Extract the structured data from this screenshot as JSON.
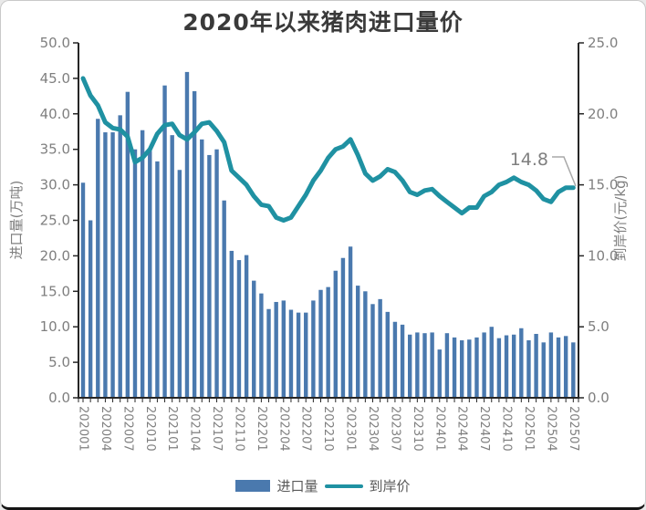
{
  "title": "2020年以来猪肉进口量价",
  "annotation_text": "14.8",
  "chart_data": {
    "type": "bar+line combo",
    "title": "2020年以来猪肉进口量价",
    "categories": [
      "202001",
      "202002",
      "202003",
      "202004",
      "202005",
      "202006",
      "202007",
      "202008",
      "202009",
      "202010",
      "202011",
      "202012",
      "202101",
      "202102",
      "202103",
      "202104",
      "202105",
      "202106",
      "202107",
      "202108",
      "202109",
      "202110",
      "202111",
      "202112",
      "202201",
      "202202",
      "202203",
      "202204",
      "202205",
      "202206",
      "202207",
      "202208",
      "202209",
      "202210",
      "202211",
      "202212",
      "202301",
      "202302",
      "202303",
      "202304",
      "202305",
      "202306",
      "202307",
      "202308",
      "202309",
      "202310",
      "202311",
      "202312",
      "202401",
      "202402",
      "202403",
      "202404",
      "202405",
      "202406",
      "202407",
      "202408",
      "202409",
      "202410",
      "202411",
      "202412",
      "202501",
      "202502",
      "202503",
      "202504",
      "202505",
      "202506",
      "202507"
    ],
    "x_label_every": 3,
    "series": [
      {
        "name": "进口量",
        "type": "bar",
        "axis": "left",
        "values": [
          30.3,
          25.0,
          39.3,
          37.4,
          37.4,
          39.8,
          43.1,
          35.0,
          37.7,
          34.8,
          33.3,
          44.0,
          37.0,
          32.1,
          45.9,
          43.2,
          36.4,
          34.2,
          35.0,
          27.8,
          20.7,
          19.4,
          20.1,
          16.5,
          14.7,
          12.5,
          13.5,
          13.7,
          12.4,
          12.0,
          12.0,
          13.7,
          15.2,
          15.6,
          17.9,
          19.7,
          21.3,
          15.8,
          15.0,
          13.2,
          13.9,
          12.1,
          10.7,
          10.3,
          8.9,
          9.2,
          9.1,
          9.2,
          6.8,
          9.1,
          8.5,
          8.1,
          8.2,
          8.5,
          9.2,
          10.0,
          8.4,
          8.8,
          8.9,
          9.8,
          8.1,
          9.0,
          7.8,
          9.2,
          8.5,
          8.7,
          7.8
        ]
      },
      {
        "name": "到岸价",
        "type": "line",
        "axis": "right",
        "values": [
          22.5,
          21.3,
          20.6,
          19.4,
          19.0,
          18.9,
          18.4,
          16.6,
          16.9,
          17.5,
          18.6,
          19.2,
          19.3,
          18.5,
          18.2,
          18.7,
          19.3,
          19.4,
          18.8,
          18.0,
          16.0,
          15.5,
          15.0,
          14.2,
          13.6,
          13.5,
          12.7,
          12.5,
          12.7,
          13.5,
          14.3,
          15.3,
          16.0,
          16.9,
          17.5,
          17.7,
          18.2,
          17.1,
          15.8,
          15.3,
          15.6,
          16.1,
          15.9,
          15.3,
          14.5,
          14.3,
          14.6,
          14.7,
          14.2,
          13.8,
          13.4,
          13.0,
          13.4,
          13.4,
          14.2,
          14.5,
          15.0,
          15.2,
          15.5,
          15.2,
          15.0,
          14.6,
          14.0,
          13.8,
          14.5,
          14.8,
          14.8
        ]
      }
    ],
    "left_axis": {
      "label": "进口量(万吨)",
      "min": 0,
      "max": 50,
      "step": 5
    },
    "right_axis": {
      "label": "到岸价(元/kg)",
      "min": 0,
      "max": 25,
      "step": 5
    },
    "annotation": {
      "text": "14.8",
      "target_index": 66
    },
    "legend_position": "bottom",
    "grid": false,
    "colors": {
      "bar": "#4a79ae",
      "line": "#1f91a2",
      "axis": "#262626",
      "tick_text": "#7f7f7f",
      "annotation": "#7f7f7f",
      "leader": "#a8a8a8"
    }
  }
}
